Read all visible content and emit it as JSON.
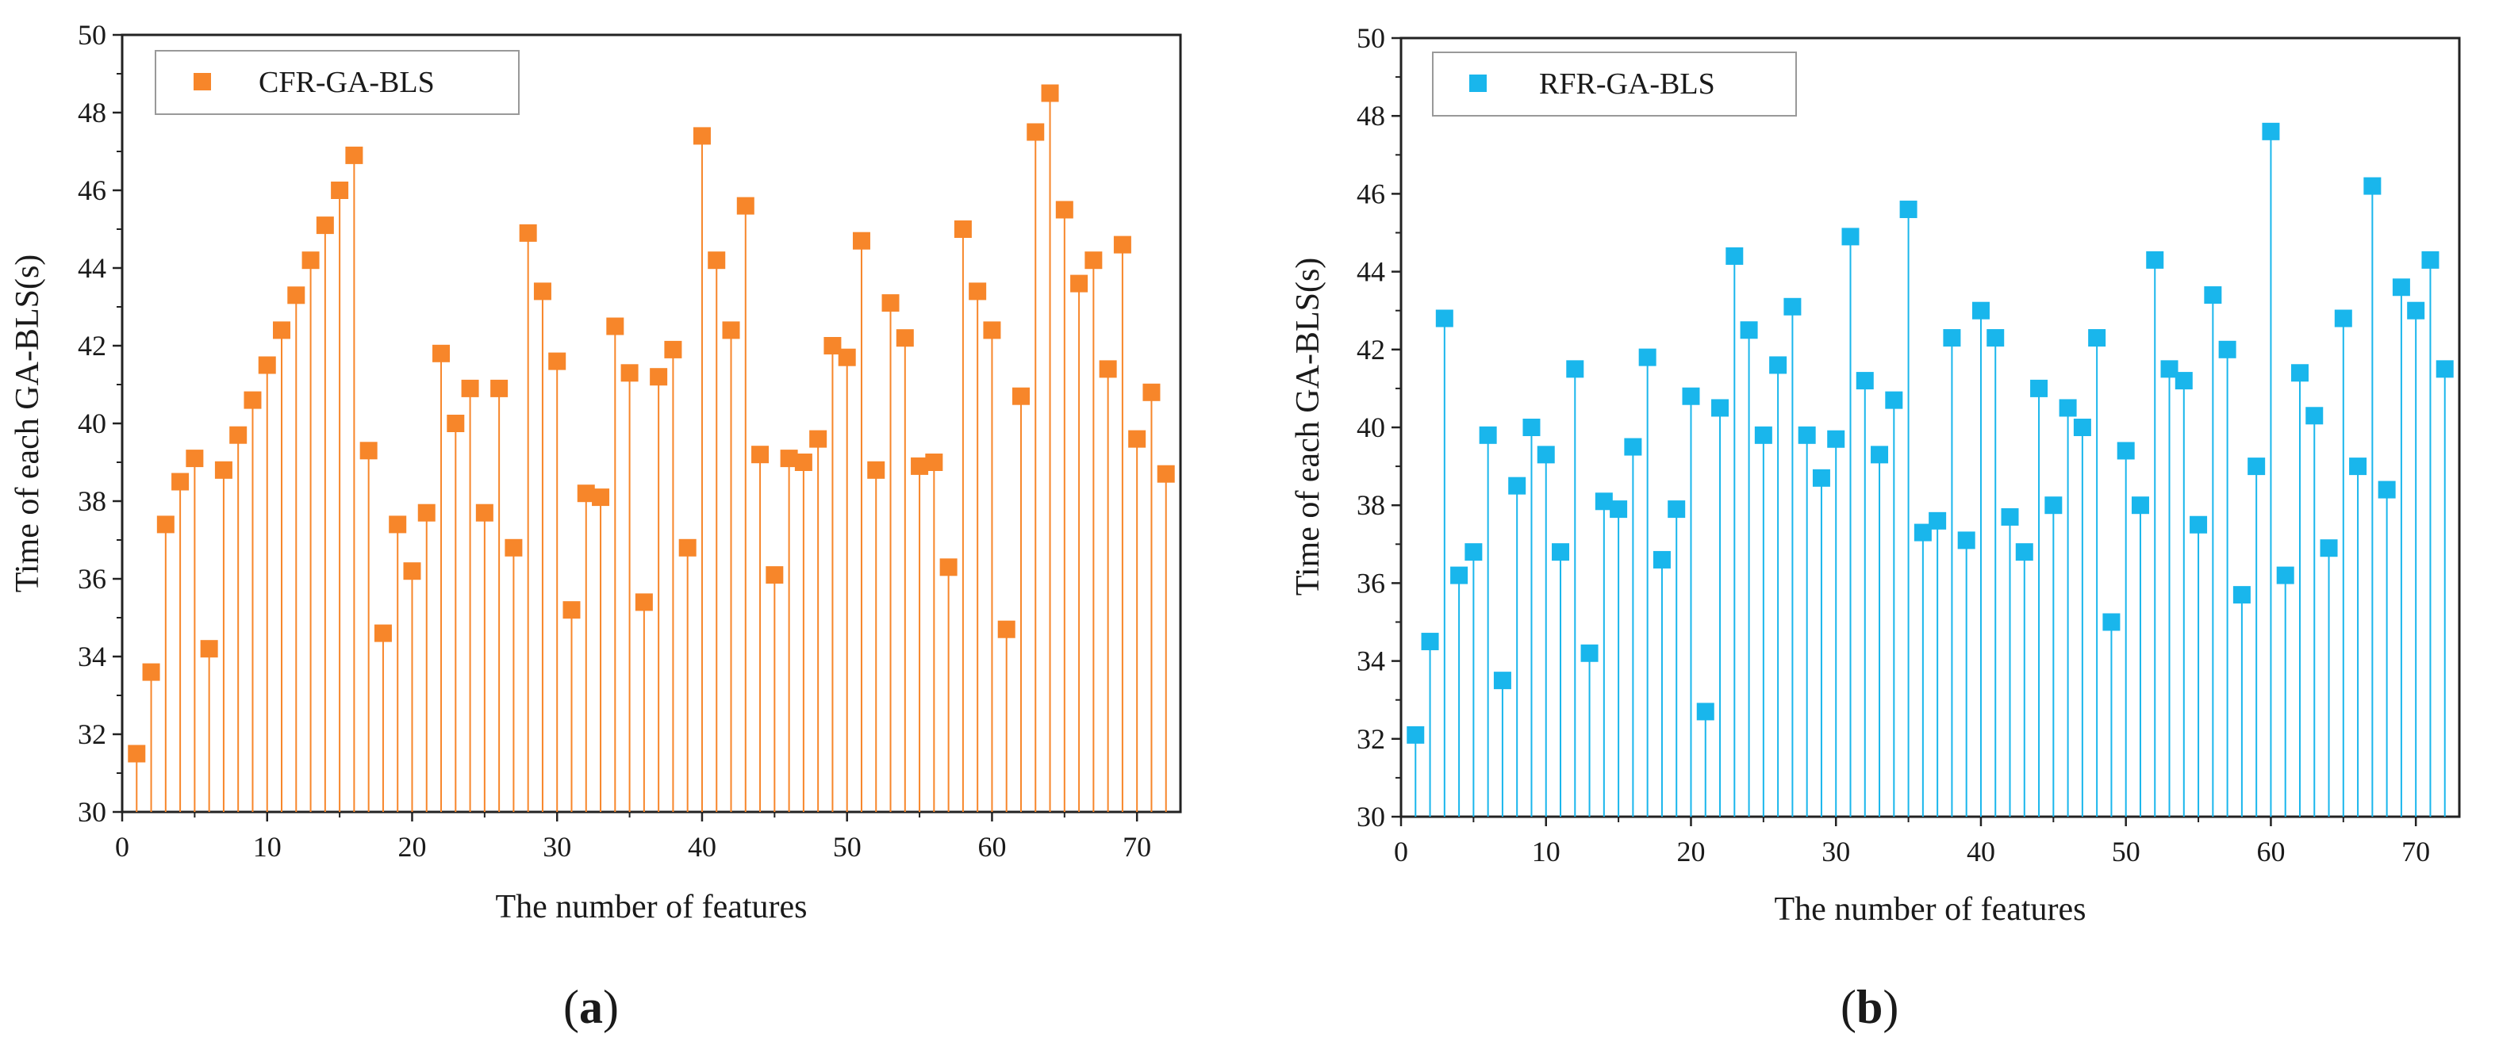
{
  "chart_data": [
    {
      "type": "scatter",
      "style": "drop-line",
      "panel_label": "a",
      "xlabel": "The number of features",
      "ylabel": "Time of each GA-BLS(s)",
      "xlim": [
        0,
        73
      ],
      "ylim": [
        30,
        50
      ],
      "xticks": [
        0,
        10,
        20,
        30,
        40,
        50,
        60,
        70
      ],
      "yticks": [
        30,
        32,
        34,
        36,
        38,
        40,
        42,
        44,
        46,
        48,
        50
      ],
      "legend_position": "top-left",
      "series": [
        {
          "name": "CFR-GA-BLS",
          "color": "#f7862a",
          "x": [
            1,
            2,
            3,
            4,
            5,
            6,
            7,
            8,
            9,
            10,
            11,
            12,
            13,
            14,
            15,
            16,
            17,
            18,
            19,
            20,
            21,
            22,
            23,
            24,
            25,
            26,
            27,
            28,
            29,
            30,
            31,
            32,
            33,
            34,
            35,
            36,
            37,
            38,
            39,
            40,
            41,
            42,
            43,
            44,
            45,
            46,
            47,
            48,
            49,
            50,
            51,
            52,
            53,
            54,
            55,
            56,
            57,
            58,
            59,
            60,
            61,
            62,
            63,
            64,
            65,
            66,
            67,
            68,
            69,
            70,
            71,
            72
          ],
          "values": [
            31.5,
            33.6,
            37.4,
            38.5,
            39.1,
            34.2,
            38.8,
            39.7,
            40.6,
            41.5,
            42.4,
            43.3,
            44.2,
            45.1,
            46.0,
            46.9,
            39.3,
            34.6,
            37.4,
            36.2,
            37.7,
            41.8,
            40.0,
            40.9,
            37.7,
            40.9,
            36.8,
            44.9,
            43.4,
            41.6,
            35.2,
            38.2,
            38.1,
            42.5,
            41.3,
            35.4,
            41.2,
            41.9,
            36.8,
            47.4,
            44.2,
            42.4,
            45.6,
            39.2,
            36.1,
            39.1,
            39.0,
            39.6,
            42.0,
            41.7,
            44.7,
            38.8,
            43.1,
            42.2,
            38.9,
            39.0,
            36.3,
            45.0,
            43.4,
            42.4,
            34.7,
            40.7,
            47.5,
            48.5,
            45.5,
            43.6,
            44.2,
            41.4,
            44.6,
            39.6,
            40.8,
            38.7
          ]
        }
      ]
    },
    {
      "type": "scatter",
      "style": "drop-line",
      "panel_label": "b",
      "xlabel": "The number of features",
      "ylabel": "Time of each GA-BLS(s)",
      "xlim": [
        0,
        73
      ],
      "ylim": [
        30,
        50
      ],
      "xticks": [
        0,
        10,
        20,
        30,
        40,
        50,
        60,
        70
      ],
      "yticks": [
        30,
        32,
        34,
        36,
        38,
        40,
        42,
        44,
        46,
        48,
        50
      ],
      "legend_position": "top-left",
      "series": [
        {
          "name": "RFR-GA-BLS",
          "color": "#19b6ec",
          "x": [
            1,
            2,
            3,
            4,
            5,
            6,
            7,
            8,
            9,
            10,
            11,
            12,
            13,
            14,
            15,
            16,
            17,
            18,
            19,
            20,
            21,
            22,
            23,
            24,
            25,
            26,
            27,
            28,
            29,
            30,
            31,
            32,
            33,
            34,
            35,
            36,
            37,
            38,
            39,
            40,
            41,
            42,
            43,
            44,
            45,
            46,
            47,
            48,
            49,
            50,
            51,
            52,
            53,
            54,
            55,
            56,
            57,
            58,
            59,
            60,
            61,
            62,
            63,
            64,
            65,
            66,
            67,
            68,
            69,
            70,
            71,
            72
          ],
          "values": [
            32.1,
            34.5,
            42.8,
            36.2,
            36.8,
            39.8,
            33.5,
            38.5,
            40.0,
            39.3,
            36.8,
            41.5,
            34.2,
            38.1,
            37.9,
            39.5,
            41.8,
            36.6,
            37.9,
            40.8,
            32.7,
            40.5,
            44.4,
            42.5,
            39.8,
            41.6,
            43.1,
            39.8,
            38.7,
            39.7,
            44.9,
            41.2,
            39.3,
            40.7,
            45.6,
            37.3,
            37.6,
            42.3,
            37.1,
            43.0,
            42.3,
            37.7,
            36.8,
            41.0,
            38.0,
            40.5,
            40.0,
            42.3,
            35.0,
            39.4,
            38.0,
            44.3,
            41.5,
            41.2,
            37.5,
            43.4,
            42.0,
            35.7,
            39.0,
            47.6,
            36.2,
            41.4,
            40.3,
            36.9,
            42.8,
            39.0,
            46.2,
            38.4,
            43.6,
            43.0,
            44.3,
            41.5
          ]
        }
      ]
    }
  ]
}
